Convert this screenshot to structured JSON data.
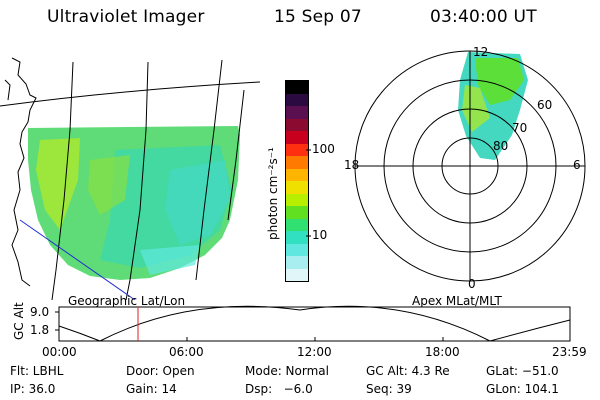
{
  "header": {
    "instrument": "Ultraviolet Imager",
    "date": "15 Sep 07",
    "time": "03:40:00 UT"
  },
  "map_panel": {
    "label": "Geographic Lat/Lon"
  },
  "colorbar": {
    "label": "photon cm⁻²s⁻¹",
    "ticks": [
      "100",
      "10"
    ],
    "colors": [
      "#000000",
      "#2a0a40",
      "#5a1050",
      "#8a0a30",
      "#c8001e",
      "#ff3010",
      "#ff7a00",
      "#ffb400",
      "#f0e000",
      "#b8ee00",
      "#60e020",
      "#30e070",
      "#30e0c0",
      "#60e8e0",
      "#a8eef0",
      "#e0f6f8"
    ]
  },
  "polar_panel": {
    "label": "Apex MLat/MLT",
    "mlt_labels": {
      "top": "12",
      "bottom": "0",
      "left": "18",
      "right": "6"
    },
    "lat_labels": [
      "60",
      "70",
      "80"
    ]
  },
  "altitude_plot": {
    "ylabel": "GC Alt",
    "yticks": [
      "9.0",
      "1.8"
    ],
    "xticks": [
      "00:00",
      "06:00",
      "12:00",
      "18:00",
      "23:59"
    ],
    "marker_time": "03:40"
  },
  "footer": {
    "filter": "Flt: LBHL",
    "door": "Door: Open",
    "mode": "Mode: Normal",
    "gc_alt": "GC Alt: 4.3 Re",
    "glat": "GLat: −51.0",
    "ip": "IP: 36.0",
    "gain": "Gain: 14",
    "dsp": "Dsp:   −6.0",
    "seq": "Seq: 39",
    "glon": "GLon: 104.1"
  }
}
